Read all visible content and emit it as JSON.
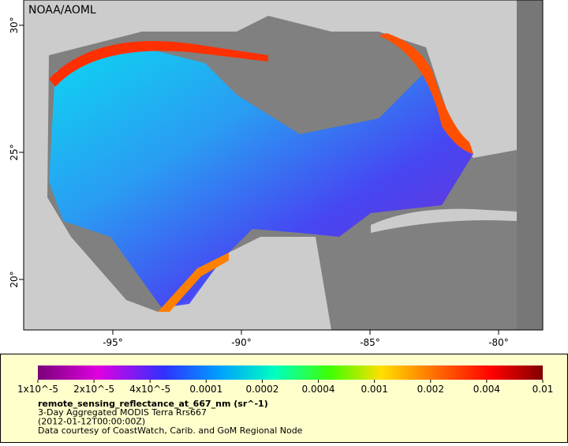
{
  "map": {
    "credit": "NOAA/AOML",
    "lon_labels": [
      "-95°",
      "-90°",
      "-85°",
      "-80°"
    ],
    "lat_labels": [
      "30°",
      "25°",
      "20°"
    ]
  },
  "legend": {
    "scale_labels": [
      "1x10^-5",
      "2x10^-5",
      "4x10^-5",
      "0.0001",
      "0.0002",
      "0.0004",
      "0.001",
      "0.002",
      "0.004",
      "0.01"
    ],
    "variable": "remote_sensing_reflectance_at_667_nm (sr^-1)",
    "lines": [
      "3-Day Aggregated MODIS Terra Rrs667",
      "(2012-01-12T00:00:00Z)",
      "Data courtesy of CoastWatch, Carib. and GoM Regional Node"
    ]
  }
}
